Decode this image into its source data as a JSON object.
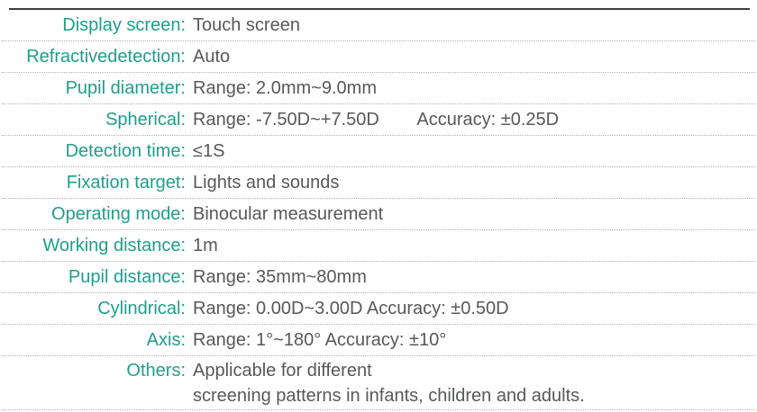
{
  "colors": {
    "accent": "#1f9e8b",
    "text": "#57585a",
    "top_rule": "#3d3e40",
    "dotted_rule": "#b0b0b0"
  },
  "rows": [
    {
      "label": "Display screen:",
      "value": "Touch screen"
    },
    {
      "label": "Refractivedetection:",
      "value": "Auto"
    },
    {
      "label": "Pupil diameter:",
      "value": "Range: 2.0mm~9.0mm"
    },
    {
      "label": "Spherical:",
      "value": "Range: -7.50D~+7.50D",
      "value2": "Accuracy: ±0.25D"
    },
    {
      "label": "Detection time:",
      "value": "≤1S"
    },
    {
      "label": "Fixation target:",
      "value": "Lights and sounds"
    },
    {
      "label": "Operating mode:",
      "value": "Binocular measurement"
    },
    {
      "label": "Working distance:",
      "value": "1m"
    },
    {
      "label": "Pupil distance:",
      "value": "Range: 35mm~80mm"
    },
    {
      "label": "Cylindrical:",
      "value": "Range: 0.00D~3.00D Accuracy: ±0.50D"
    },
    {
      "label": "Axis:",
      "value": "Range: 1°~180° Accuracy: ±10°"
    },
    {
      "label": "Others:",
      "value": "Applicable for different",
      "value2": "screening patterns in infants, children and adults."
    }
  ]
}
